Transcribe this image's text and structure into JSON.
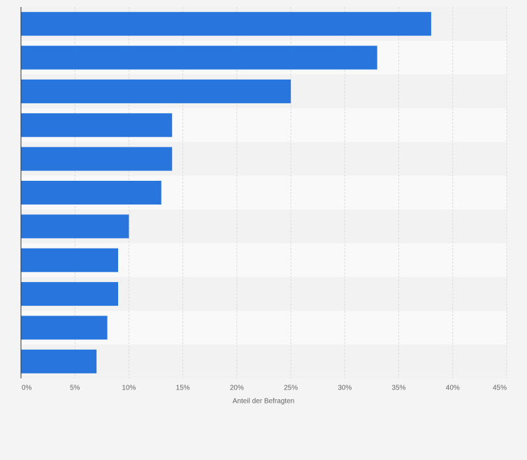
{
  "chart_data": {
    "type": "barh",
    "categories": [
      null,
      null,
      null,
      null,
      null,
      null,
      null,
      null,
      null,
      null,
      null
    ],
    "values": [
      38,
      33,
      25,
      14,
      14,
      13,
      10,
      9,
      9,
      8,
      7
    ],
    "color": "#2876dd",
    "xlabel": "Anteil der Befragten",
    "xlim": [
      0,
      45
    ],
    "xticks": [
      {
        "value": 0,
        "label": "0%"
      },
      {
        "value": 5,
        "label": "5%"
      },
      {
        "value": 10,
        "label": "10%"
      },
      {
        "value": 15,
        "label": "15%"
      },
      {
        "value": 20,
        "label": "20%"
      },
      {
        "value": 25,
        "label": "25%"
      },
      {
        "value": 30,
        "label": "30%"
      },
      {
        "value": 35,
        "label": "35%"
      },
      {
        "value": 40,
        "label": "40%"
      },
      {
        "value": 45,
        "label": "45%"
      }
    ],
    "grid": true
  }
}
